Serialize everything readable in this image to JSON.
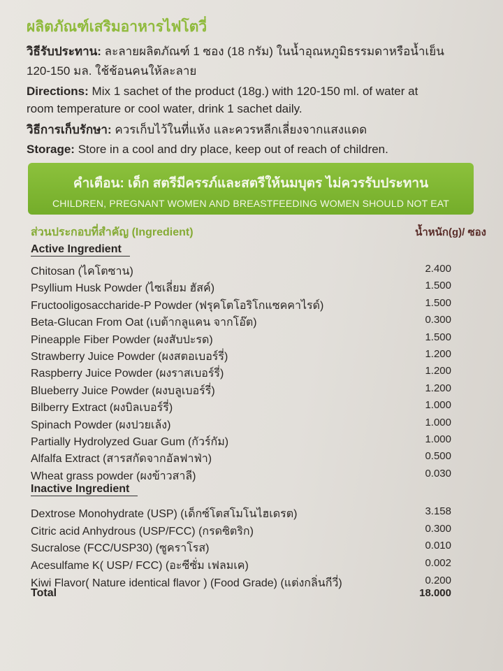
{
  "title": "ผลิตภัณฑ์เสริมอาหารไฟโตวี่",
  "directions_th_label": "วิธีรับประทาน:",
  "directions_th_1": "ละลายผลิตภัณฑ์ 1 ซอง (18 กรัม) ในน้ำอุณหภูมิธรรมดาหรือน้ำเย็น",
  "directions_th_2": "120-150 มล. ใช้ช้อนคนให้ละลาย",
  "directions_en_label": "Directions:",
  "directions_en_1": "Mix 1 sachet of the product (18g.) with 120-150 ml. of water at",
  "directions_en_2": "room temperature or cool water, drink 1 sachet daily.",
  "storage_th_label": "วิธีการเก็บรักษา:",
  "storage_th": "ควรเก็บไว้ในที่แห้ง และควรหลีกเลี่ยงจากแสงแดด",
  "storage_en_label": "Storage:",
  "storage_en": "Store in a cool and dry place, keep out of reach of children.",
  "warning": {
    "th": "คำเตือน: เด็ก สตรีมีครรภ์และสตรีให้นมบุตร ไม่ควรรับประทาน",
    "en": "CHILDREN, PREGNANT WOMEN AND BREASTFEEDING WOMEN SHOULD NOT EAT"
  },
  "ingredients_header": "ส่วนประกอบที่สำคัญ (Ingredient)",
  "weight_header": "น้ำหนัก(g)/ ซอง",
  "active_label": "Active Ingredient",
  "active": [
    {
      "name": "Chitosan (ไคโตซาน)",
      "value": "2.400"
    },
    {
      "name": "Psyllium Husk Powder (ไซเลี่ยม ฮัสค์)",
      "value": "1.500"
    },
    {
      "name": "Fructooligosaccharide-P Powder (ฟรุคโตโอริโกแซคคาไรด์)",
      "value": "1.500"
    },
    {
      "name": "Beta-Glucan From Oat (เบต้ากลูแคน จากโอ๊ต)",
      "value": "0.300"
    },
    {
      "name": "Pineapple Fiber Powder (ผงสับปะรด)",
      "value": "1.500"
    },
    {
      "name": "Strawberry Juice Powder (ผงสตอเบอร์รี่)",
      "value": "1.200"
    },
    {
      "name": "Raspberry Juice Powder (ผงราสเบอร์รี่)",
      "value": "1.200"
    },
    {
      "name": "Blueberry Juice Powder (ผงบลูเบอร์รี่)",
      "value": "1.200"
    },
    {
      "name": "Bilberry Extract (ผงบิลเบอร์รี่)",
      "value": "1.000"
    },
    {
      "name": "Spinach Powder (ผงปวยเล้ง)",
      "value": "1.000"
    },
    {
      "name": "Partially Hydrolyzed Guar Gum (กัวร์กัม)",
      "value": "1.000"
    },
    {
      "name": "Alfalfa Extract (สารสกัดจากอัลฟาฟ่า)",
      "value": "0.500"
    },
    {
      "name": "Wheat grass powder (ผงข้าวสาลี)",
      "value": "0.030"
    }
  ],
  "inactive_label": "Inactive Ingredient",
  "inactive": [
    {
      "name": "Dextrose Monohydrate (USP) (เด็กซ์โตสโมโนไฮเดรต)",
      "value": "3.158"
    },
    {
      "name": "Citric acid Anhydrous (USP/FCC) (กรดซิตริก)",
      "value": "0.300"
    },
    {
      "name": "Sucralose (FCC/USP30) (ซูคราโรส)",
      "value": "0.010"
    },
    {
      "name": "Acesulfame K( USP/ FCC) (อะซีซั่ม เฟลมเค)",
      "value": "0.002"
    },
    {
      "name": "Kiwi Flavor( Nature identical flavor ) (Food Grade) (แต่งกลิ่นกีวี่)",
      "value": "0.200"
    }
  ],
  "total": {
    "name": "Total",
    "value": "18.000"
  }
}
